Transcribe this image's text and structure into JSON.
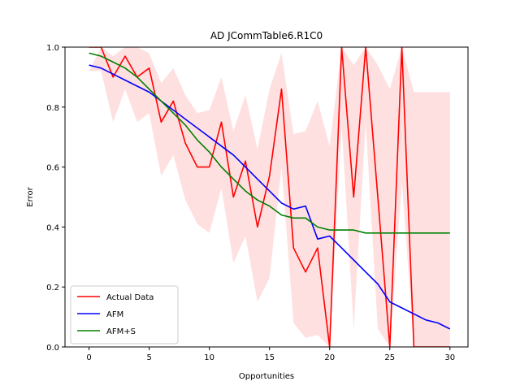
{
  "chart_data": {
    "type": "line",
    "title": "AD JCommTable6.R1C0",
    "xlabel": "Opportunities",
    "ylabel": "Error",
    "xlim": [
      -2,
      31.5
    ],
    "ylim": [
      0,
      1
    ],
    "xticks": [
      0,
      5,
      10,
      15,
      20,
      25,
      30
    ],
    "yticks": [
      0.0,
      0.2,
      0.4,
      0.6,
      0.8,
      1.0
    ],
    "grid": false,
    "legend_position": "lower-left",
    "x": [
      0,
      1,
      2,
      3,
      4,
      5,
      6,
      7,
      8,
      9,
      10,
      11,
      12,
      13,
      14,
      15,
      16,
      17,
      18,
      19,
      20,
      21,
      22,
      23,
      24,
      25,
      26,
      27,
      28,
      29,
      30
    ],
    "series": [
      {
        "name": "Actual Data",
        "color": "#ff0000",
        "values": [
          1.0,
          1.0,
          0.9,
          0.97,
          0.9,
          0.93,
          0.75,
          0.82,
          0.68,
          0.6,
          0.6,
          0.75,
          0.5,
          0.62,
          0.4,
          0.57,
          0.86,
          0.33,
          0.25,
          0.33,
          0.0,
          1.0,
          0.5,
          1.0,
          0.5,
          0.0,
          1.0,
          0.0,
          0.0,
          0.0,
          0.0
        ],
        "band_upper": [
          0.92,
          1.0,
          0.97,
          1.0,
          1.0,
          0.98,
          0.88,
          0.93,
          0.84,
          0.78,
          0.79,
          0.9,
          0.72,
          0.84,
          0.66,
          0.86,
          0.98,
          0.71,
          0.72,
          0.82,
          0.67,
          1.0,
          0.94,
          1.0,
          0.94,
          0.86,
          1.0,
          0.85,
          0.85,
          0.85,
          0.85
        ],
        "band_lower": [
          0.92,
          0.92,
          0.75,
          0.86,
          0.75,
          0.78,
          0.57,
          0.64,
          0.49,
          0.41,
          0.38,
          0.53,
          0.28,
          0.37,
          0.15,
          0.23,
          0.6,
          0.08,
          0.03,
          0.04,
          0.0,
          0.74,
          0.06,
          0.75,
          0.06,
          0.0,
          0.55,
          0.0,
          0.0,
          0.0,
          0.0
        ],
        "band_color": "#ff9999"
      },
      {
        "name": "AFM",
        "color": "#0000ff",
        "values": [
          0.94,
          0.93,
          0.91,
          0.89,
          0.87,
          0.85,
          0.82,
          0.79,
          0.76,
          0.73,
          0.7,
          0.67,
          0.64,
          0.6,
          0.56,
          0.52,
          0.48,
          0.46,
          0.47,
          0.36,
          0.37,
          0.33,
          0.29,
          0.25,
          0.21,
          0.15,
          0.13,
          0.11,
          0.09,
          0.08,
          0.06
        ]
      },
      {
        "name": "AFM+S",
        "color": "#008000",
        "values": [
          0.98,
          0.97,
          0.95,
          0.93,
          0.9,
          0.86,
          0.82,
          0.78,
          0.74,
          0.69,
          0.65,
          0.6,
          0.56,
          0.52,
          0.49,
          0.47,
          0.44,
          0.43,
          0.43,
          0.4,
          0.39,
          0.39,
          0.39,
          0.38,
          0.38,
          0.38,
          0.38,
          0.38,
          0.38,
          0.38,
          0.38
        ]
      }
    ]
  }
}
